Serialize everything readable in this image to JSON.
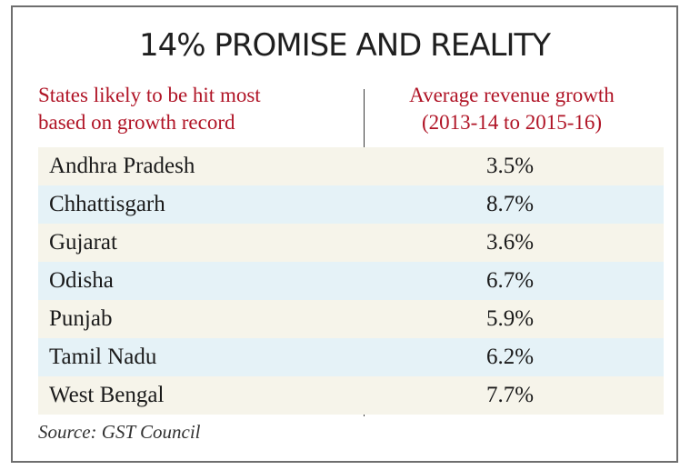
{
  "chart_data": {
    "type": "table",
    "title": "14% PROMISE AND REALITY",
    "column_headers": [
      "States likely to be hit most based on growth record",
      "Average revenue growth (2013-14 to 2015-16)"
    ],
    "header_lines": {
      "left": [
        "States likely to be hit most",
        "based on growth record"
      ],
      "right": [
        "Average revenue growth",
        "(2013-14 to 2015-16)"
      ]
    },
    "categories": [
      "Andhra Pradesh",
      "Chhattisgarh",
      "Gujarat",
      "Odisha",
      "Punjab",
      "Tamil Nadu",
      "West Bengal"
    ],
    "values": [
      3.5,
      8.7,
      3.6,
      6.7,
      5.9,
      6.2,
      7.7
    ],
    "value_labels": [
      "3.5%",
      "8.7%",
      "3.6%",
      "6.7%",
      "5.9%",
      "6.2%",
      "7.7%"
    ],
    "unit": "%",
    "source": "Source: GST Council"
  },
  "colors": {
    "header_text": "#b01426",
    "row_beige": "#f6f4ea",
    "row_blue": "#e5f2f7"
  }
}
